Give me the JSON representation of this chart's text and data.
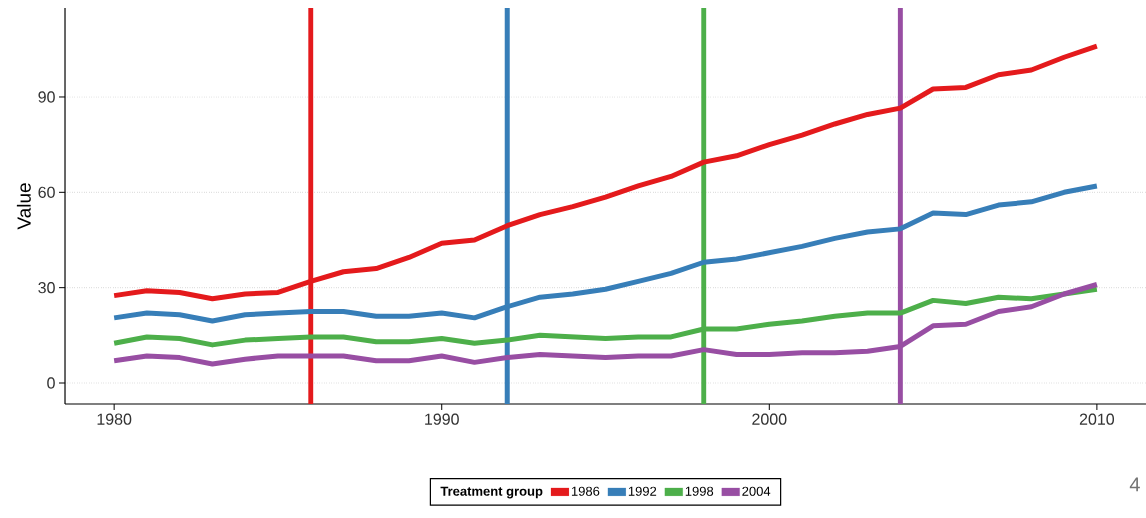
{
  "chart_data": {
    "type": "line",
    "ylabel": "Value",
    "legend_title": "Treatment group",
    "x": [
      1980,
      1981,
      1982,
      1983,
      1984,
      1985,
      1986,
      1987,
      1988,
      1989,
      1990,
      1991,
      1992,
      1993,
      1994,
      1995,
      1996,
      1997,
      1998,
      1999,
      2000,
      2001,
      2002,
      2003,
      2004,
      2005,
      2006,
      2007,
      2008,
      2009,
      2010
    ],
    "series": [
      {
        "name": "1986",
        "color": "#e41a1c",
        "values": [
          27.5,
          29,
          28.5,
          26.5,
          28,
          28.5,
          32,
          35,
          36,
          39.5,
          44,
          45,
          49.5,
          53,
          55.5,
          58.5,
          62,
          65,
          69.5,
          71.5,
          75,
          78,
          81.5,
          84.5,
          86.5,
          92.5,
          93,
          97,
          98.5,
          102.5,
          106
        ]
      },
      {
        "name": "1992",
        "color": "#377eb8",
        "values": [
          20.5,
          22,
          21.5,
          19.5,
          21.5,
          22,
          22.5,
          22.5,
          21,
          21,
          22,
          20.5,
          24,
          27,
          28,
          29.5,
          32,
          34.5,
          38,
          39,
          41,
          43,
          45.5,
          47.5,
          48.5,
          53.5,
          53,
          56,
          57,
          60,
          62
        ]
      },
      {
        "name": "1998",
        "color": "#4daf4a",
        "values": [
          12.5,
          14.5,
          14,
          12,
          13.5,
          14,
          14.5,
          14.5,
          13,
          13,
          14,
          12.5,
          13.5,
          15,
          14.5,
          14,
          14.5,
          14.5,
          17,
          17,
          18.5,
          19.5,
          21,
          22,
          22,
          26,
          25,
          27,
          26.5,
          28,
          29.5
        ]
      },
      {
        "name": "2004",
        "color": "#984ea3",
        "values": [
          7,
          8.5,
          8,
          6,
          7.5,
          8.5,
          8.5,
          8.5,
          7,
          7,
          8.5,
          6.5,
          8,
          9,
          8.5,
          8,
          8.5,
          8.5,
          10.5,
          9,
          9,
          9.5,
          9.5,
          10,
          11.5,
          18,
          18.5,
          22.5,
          24,
          28,
          31
        ]
      }
    ],
    "ref_lines": [
      {
        "axis": "x",
        "value": 1986,
        "color": "#e41a1c"
      },
      {
        "axis": "x",
        "value": 1992,
        "color": "#377eb8"
      },
      {
        "axis": "x",
        "value": 1998,
        "color": "#4daf4a"
      },
      {
        "axis": "x",
        "value": 2004,
        "color": "#984ea3"
      }
    ],
    "xlim": [
      1978.5,
      2011.5
    ],
    "ylim": [
      -6.6,
      118
    ],
    "xticks": [
      1980,
      1990,
      2000,
      2010
    ],
    "yticks": [
      0,
      30,
      60,
      90
    ],
    "grid": "y",
    "legend": "bottom",
    "annotations": [
      "4"
    ]
  }
}
